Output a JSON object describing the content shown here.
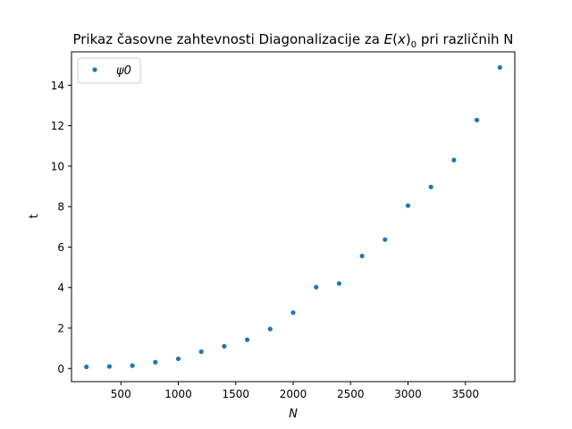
{
  "chart_data": {
    "type": "scatter",
    "title": "Prikaz časovne zahtevnosti Diagonalizacije za E(x)₀ pri različnih N",
    "xlabel": "N",
    "ylabel": "t",
    "xlim": [
      70,
      3930
    ],
    "ylim": [
      -0.65,
      15.65
    ],
    "xticks": [
      500,
      1000,
      1500,
      2000,
      2500,
      3000,
      3500
    ],
    "xtick_labels": [
      "500",
      "1000",
      "1500",
      "2000",
      "2500",
      "3000",
      "3500"
    ],
    "yticks": [
      0,
      2,
      4,
      6,
      8,
      10,
      12,
      14
    ],
    "ytick_labels": [
      "0",
      "2",
      "4",
      "6",
      "8",
      "10",
      "12",
      "14"
    ],
    "grid": false,
    "legend_position": "top-left",
    "series": [
      {
        "name": "ψ0",
        "color": "#1f77b4",
        "marker": "dot",
        "x": [
          200,
          400,
          600,
          800,
          1000,
          1200,
          1400,
          1600,
          1800,
          2000,
          2200,
          2400,
          2600,
          2800,
          3000,
          3200,
          3400,
          3600,
          3800
        ],
        "y": [
          0.08,
          0.1,
          0.14,
          0.31,
          0.48,
          0.83,
          1.1,
          1.42,
          1.95,
          2.76,
          4.02,
          4.2,
          5.56,
          6.37,
          8.05,
          8.97,
          10.3,
          12.28,
          14.88
        ]
      }
    ]
  }
}
